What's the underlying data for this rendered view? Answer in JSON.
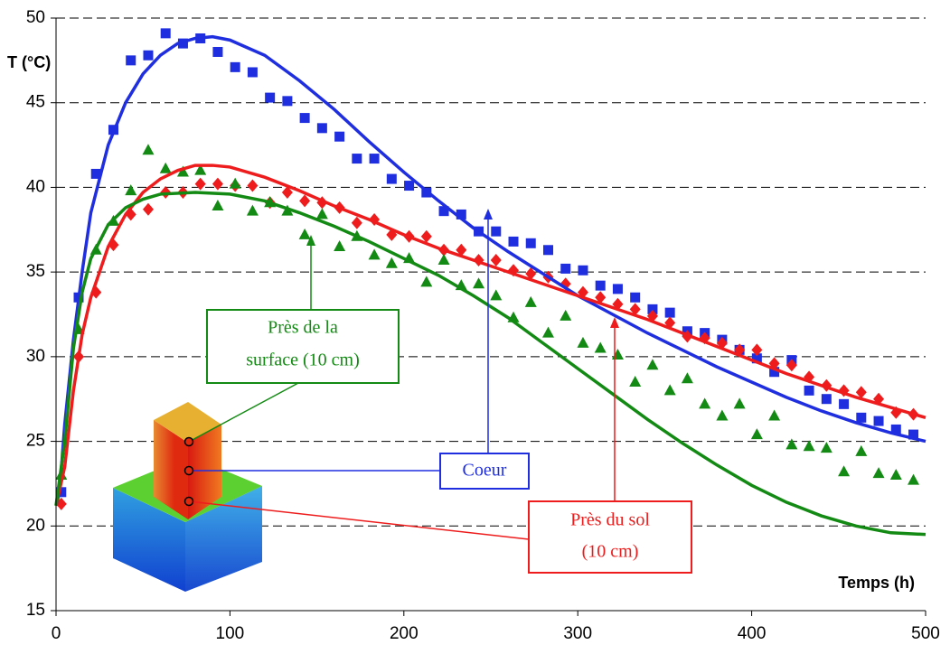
{
  "chart_data": {
    "type": "line",
    "y_label": "T (°C)",
    "x_label": "Temps (h)",
    "xlim": [
      0,
      500
    ],
    "xticks": [
      0,
      100,
      200,
      300,
      400,
      500
    ],
    "ylim": [
      15,
      50
    ],
    "yticks": [
      15,
      20,
      25,
      30,
      35,
      40,
      45,
      50
    ],
    "grid": true,
    "annotations": {
      "surface": [
        "Près de la",
        "surface (10 cm)"
      ],
      "coeur": [
        "Coeur"
      ],
      "sol": [
        "Près du sol",
        "(10 cm)"
      ]
    },
    "series": [
      {
        "mark": "square",
        "color": "#1f2fe0",
        "x": [
          3,
          13,
          23,
          33,
          43,
          53,
          63,
          73,
          83,
          93,
          103,
          113,
          123,
          133,
          143,
          153,
          163,
          173,
          183,
          193,
          203,
          213,
          223,
          233,
          243,
          253,
          263,
          273,
          283,
          293,
          303,
          313,
          323,
          333,
          343,
          353,
          363,
          373,
          383,
          393,
          403,
          413,
          423,
          433,
          443,
          453,
          463,
          473,
          483,
          493
        ],
        "values": [
          22.0,
          33.5,
          40.8,
          43.4,
          47.5,
          47.8,
          49.1,
          48.5,
          48.8,
          48.0,
          47.1,
          46.8,
          45.3,
          45.1,
          44.1,
          43.5,
          43.0,
          41.7,
          41.7,
          40.5,
          40.1,
          39.7,
          38.6,
          38.4,
          37.4,
          37.4,
          36.8,
          36.7,
          36.3,
          35.2,
          35.1,
          34.2,
          34.0,
          33.5,
          32.8,
          32.6,
          31.5,
          31.4,
          31.0,
          30.4,
          29.9,
          29.1,
          29.8,
          28.0,
          27.5,
          27.2,
          26.4,
          26.2,
          25.7,
          25.4
        ]
      },
      {
        "mark": "diamond",
        "color": "#ee1c1c",
        "x": [
          3,
          13,
          23,
          33,
          43,
          53,
          63,
          73,
          83,
          93,
          103,
          113,
          123,
          133,
          143,
          153,
          163,
          173,
          183,
          193,
          203,
          213,
          223,
          233,
          243,
          253,
          263,
          273,
          283,
          293,
          303,
          313,
          323,
          333,
          343,
          353,
          363,
          373,
          383,
          393,
          403,
          413,
          423,
          433,
          443,
          453,
          463,
          473,
          483,
          493
        ],
        "values": [
          21.3,
          30.0,
          33.8,
          36.6,
          38.4,
          38.7,
          39.7,
          39.7,
          40.2,
          40.2,
          40.1,
          40.1,
          39.1,
          39.7,
          39.2,
          39.1,
          38.8,
          37.9,
          38.1,
          37.2,
          37.1,
          37.1,
          36.3,
          36.3,
          35.7,
          35.7,
          35.1,
          34.9,
          34.7,
          34.3,
          33.8,
          33.5,
          33.1,
          32.8,
          32.4,
          32.0,
          31.2,
          31.1,
          30.8,
          30.4,
          30.4,
          29.6,
          29.5,
          28.8,
          28.3,
          28.0,
          27.9,
          27.5,
          26.7,
          26.6
        ]
      },
      {
        "mark": "triangle",
        "color": "#138a13",
        "x": [
          3,
          13,
          23,
          33,
          43,
          53,
          63,
          73,
          83,
          93,
          103,
          113,
          123,
          133,
          143,
          153,
          163,
          173,
          183,
          193,
          203,
          213,
          223,
          233,
          243,
          253,
          263,
          273,
          283,
          293,
          303,
          313,
          323,
          333,
          343,
          353,
          363,
          373,
          383,
          393,
          403,
          413,
          423,
          433,
          443,
          453,
          463,
          473,
          483,
          493
        ],
        "values": [
          23.0,
          31.6,
          36.3,
          38.0,
          39.8,
          42.2,
          41.1,
          40.9,
          41.0,
          38.9,
          40.2,
          38.6,
          39.1,
          38.6,
          37.2,
          38.4,
          36.5,
          37.1,
          36.0,
          35.5,
          35.8,
          34.4,
          35.7,
          34.2,
          34.3,
          33.6,
          32.3,
          33.2,
          31.4,
          32.4,
          30.8,
          30.5,
          30.1,
          28.5,
          29.5,
          28.0,
          28.7,
          27.2,
          26.5,
          27.2,
          25.4,
          26.5,
          24.8,
          24.7,
          24.6,
          23.2,
          24.4,
          23.1,
          23.0,
          22.7
        ]
      },
      {
        "mark": "line",
        "color": "#1f2fe0",
        "x": [
          0,
          2,
          5,
          10,
          15,
          20,
          30,
          40,
          50,
          60,
          70,
          80,
          90,
          100,
          120,
          140,
          160,
          180,
          200,
          220,
          240,
          260,
          280,
          300,
          320,
          340,
          360,
          380,
          400,
          420,
          440,
          460,
          480,
          500
        ],
        "values": [
          21.2,
          22,
          26,
          31,
          35,
          38.5,
          42.5,
          45,
          46.7,
          47.8,
          48.5,
          48.8,
          48.9,
          48.7,
          47.8,
          46.3,
          44.6,
          42.7,
          40.9,
          39.2,
          37.6,
          36.2,
          34.9,
          33.6,
          32.5,
          31.4,
          30.4,
          29.4,
          28.5,
          27.6,
          26.8,
          26.1,
          25.5,
          25.0
        ]
      },
      {
        "mark": "line",
        "color": "#ee1c1c",
        "x": [
          0,
          5,
          10,
          15,
          20,
          30,
          40,
          50,
          60,
          70,
          80,
          90,
          100,
          120,
          140,
          160,
          180,
          200,
          220,
          240,
          260,
          280,
          300,
          320,
          340,
          360,
          380,
          400,
          420,
          440,
          460,
          480,
          500
        ],
        "values": [
          21.2,
          23.5,
          28,
          31.3,
          33.5,
          36.5,
          38.4,
          39.7,
          40.5,
          41,
          41.3,
          41.3,
          41.2,
          40.6,
          39.8,
          38.9,
          38.1,
          37.2,
          36.4,
          35.7,
          35.0,
          34.3,
          33.6,
          32.9,
          32.2,
          31.4,
          30.6,
          29.8,
          29.0,
          28.3,
          27.6,
          27.0,
          26.4
        ]
      },
      {
        "mark": "line",
        "color": "#138a13",
        "x": [
          0,
          5,
          10,
          15,
          20,
          30,
          40,
          50,
          60,
          80,
          100,
          120,
          140,
          160,
          180,
          200,
          220,
          240,
          260,
          280,
          300,
          320,
          340,
          360,
          380,
          400,
          420,
          440,
          460,
          480,
          500
        ],
        "values": [
          21.2,
          25,
          30.5,
          33.8,
          35.8,
          37.8,
          38.8,
          39.3,
          39.6,
          39.7,
          39.6,
          39.2,
          38.5,
          37.7,
          36.8,
          35.8,
          34.8,
          33.6,
          32.3,
          30.8,
          29.3,
          27.8,
          26.3,
          24.9,
          23.6,
          22.4,
          21.4,
          20.6,
          20.0,
          19.6,
          19.5
        ]
      }
    ]
  }
}
